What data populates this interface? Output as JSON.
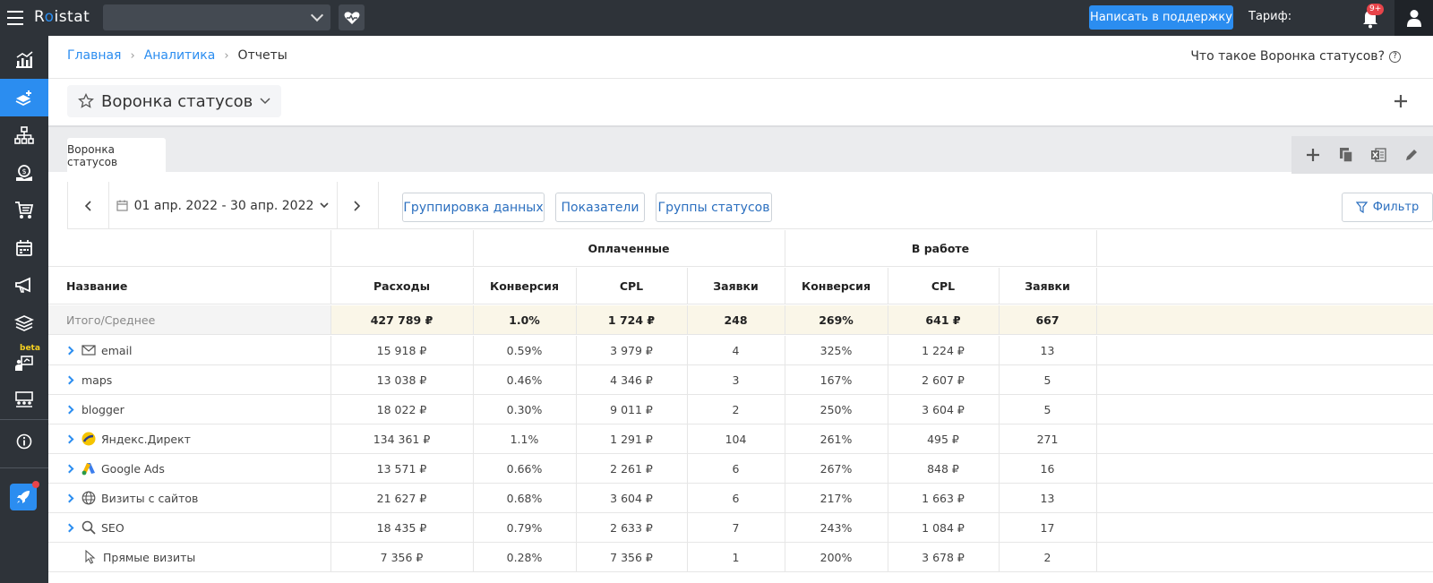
{
  "topbar": {
    "logo_r": "R",
    "logo_o": "o",
    "logo_rest": "istat",
    "support_label": "Написать в поддержку",
    "tariff_label": "Тариф:",
    "notif_badge": "9+"
  },
  "sidebar": {
    "beta_label": "beta"
  },
  "breadcrumb": {
    "home": "Главная",
    "analytics": "Аналитика",
    "current": "Отчеты"
  },
  "help_link": "Что такое Воронка статусов?",
  "report_title": "Воронка статусов",
  "tab_label": "Воронка статусов",
  "toolbar": {
    "date_range": "01 апр. 2022 - 30 апр. 2022",
    "grouping_label": "Группировка данных",
    "metrics_label": "Показатели",
    "status_groups_label": "Группы статусов",
    "filter_label": "Фильтр"
  },
  "table": {
    "group_paid": "Оплаченные",
    "group_in_work": "В работе",
    "columns": [
      "Название",
      "Расходы",
      "Конверсия",
      "CPL",
      "Заявки",
      "Конверсия",
      "CPL",
      "Заявки"
    ],
    "total": [
      "Итого/Среднее",
      "427 789 ₽",
      "1.0%",
      "1 724 ₽",
      "248",
      "269%",
      "641 ₽",
      "667"
    ],
    "rows": [
      {
        "name": "email",
        "icon": "mail-icon",
        "values": [
          "15 918 ₽",
          "0.59%",
          "3 979 ₽",
          "4",
          "325%",
          "1 224 ₽",
          "13"
        ]
      },
      {
        "name": "maps",
        "icon": "",
        "values": [
          "13 038 ₽",
          "0.46%",
          "4 346 ₽",
          "3",
          "167%",
          "2 607 ₽",
          "5"
        ]
      },
      {
        "name": "blogger",
        "icon": "",
        "values": [
          "18 022 ₽",
          "0.30%",
          "9 011 ₽",
          "2",
          "250%",
          "3 604 ₽",
          "5"
        ]
      },
      {
        "name": "Яндекс.Директ",
        "icon": "yandex-direct-icon",
        "values": [
          "134 361 ₽",
          "1.1%",
          "1 291 ₽",
          "104",
          "261%",
          "495 ₽",
          "271"
        ]
      },
      {
        "name": "Google Ads",
        "icon": "google-ads-icon",
        "values": [
          "13 571 ₽",
          "0.66%",
          "2 261 ₽",
          "6",
          "267%",
          "848 ₽",
          "16"
        ]
      },
      {
        "name": "Визиты с сайтов",
        "icon": "globe-icon",
        "values": [
          "21 627 ₽",
          "0.68%",
          "3 604 ₽",
          "6",
          "217%",
          "1 663 ₽",
          "13"
        ]
      },
      {
        "name": "SEO",
        "icon": "search-icon",
        "values": [
          "18 435 ₽",
          "0.79%",
          "2 633 ₽",
          "7",
          "243%",
          "1 084 ₽",
          "17"
        ]
      },
      {
        "name": "Прямые визиты",
        "icon": "cursor-icon",
        "values": [
          "7 356 ₽",
          "0.28%",
          "7 356 ₽",
          "1",
          "200%",
          "3 678 ₽",
          "2"
        ]
      }
    ]
  }
}
